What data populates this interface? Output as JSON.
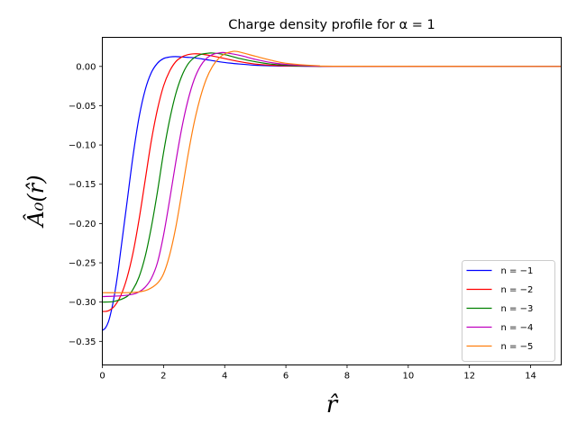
{
  "chart_data": {
    "type": "line",
    "title": "Charge density profile for α = 1",
    "xlabel": "r̂",
    "ylabel": "Â₀(r̂)",
    "xlim": [
      0,
      15
    ],
    "ylim": [
      -0.38,
      0.037
    ],
    "grid": false,
    "legend_position": "lower-right",
    "xticks": [
      0,
      2,
      4,
      6,
      8,
      10,
      12,
      14
    ],
    "yticks": [
      0.0,
      -0.05,
      -0.1,
      -0.15,
      -0.2,
      -0.25,
      -0.3,
      -0.35
    ],
    "ytick_labels": [
      "0.00",
      "−0.05",
      "−0.10",
      "−0.15",
      "−0.20",
      "−0.25",
      "−0.30",
      "−0.35"
    ],
    "series": [
      {
        "name": "n = −1",
        "color": "#0000ff",
        "x": [
          0,
          0.1,
          0.2,
          0.3,
          0.4,
          0.5,
          0.6,
          0.8,
          1.0,
          1.2,
          1.4,
          1.6,
          1.8,
          2.0,
          2.2,
          2.4,
          2.6,
          2.8,
          3.0,
          3.5,
          4.0,
          4.5,
          5.0,
          5.5,
          6.0,
          7.0,
          8.0,
          15.0
        ],
        "y": [
          -0.336,
          -0.333,
          -0.325,
          -0.31,
          -0.29,
          -0.265,
          -0.235,
          -0.175,
          -0.115,
          -0.065,
          -0.03,
          -0.008,
          0.004,
          0.01,
          0.012,
          0.0125,
          0.012,
          0.0115,
          0.011,
          0.008,
          0.005,
          0.003,
          0.0015,
          0.0008,
          0.0004,
          0.0001,
          0.0,
          0.0
        ]
      },
      {
        "name": "n = −2",
        "color": "#ff0000",
        "x": [
          0,
          0.2,
          0.4,
          0.6,
          0.8,
          1.0,
          1.2,
          1.4,
          1.6,
          1.8,
          2.0,
          2.2,
          2.4,
          2.6,
          2.8,
          3.0,
          3.2,
          3.5,
          4.0,
          4.5,
          5.0,
          5.5,
          6.0,
          7.0,
          8.0,
          15.0
        ],
        "y": [
          -0.312,
          -0.311,
          -0.305,
          -0.292,
          -0.27,
          -0.238,
          -0.195,
          -0.145,
          -0.095,
          -0.055,
          -0.025,
          -0.006,
          0.006,
          0.012,
          0.015,
          0.016,
          0.0158,
          0.014,
          0.01,
          0.006,
          0.003,
          0.0015,
          0.0007,
          0.0001,
          0.0,
          0.0
        ]
      },
      {
        "name": "n = −3",
        "color": "#008000",
        "x": [
          0,
          0.4,
          0.8,
          1.0,
          1.2,
          1.4,
          1.6,
          1.8,
          2.0,
          2.2,
          2.4,
          2.6,
          2.8,
          3.0,
          3.2,
          3.4,
          3.6,
          4.0,
          4.5,
          5.0,
          5.5,
          6.0,
          7.0,
          8.0,
          15.0
        ],
        "y": [
          -0.3,
          -0.299,
          -0.293,
          -0.284,
          -0.268,
          -0.242,
          -0.205,
          -0.16,
          -0.11,
          -0.068,
          -0.035,
          -0.012,
          0.003,
          0.011,
          0.015,
          0.0165,
          0.017,
          0.015,
          0.01,
          0.006,
          0.003,
          0.0015,
          0.0003,
          0.0,
          0.0
        ]
      },
      {
        "name": "n = −4",
        "color": "#bf00bf",
        "x": [
          0,
          0.6,
          1.0,
          1.2,
          1.4,
          1.6,
          1.8,
          2.0,
          2.2,
          2.4,
          2.6,
          2.8,
          3.0,
          3.2,
          3.4,
          3.6,
          3.8,
          4.0,
          4.5,
          5.0,
          5.5,
          6.0,
          7.0,
          8.0,
          15.0
        ],
        "y": [
          -0.293,
          -0.292,
          -0.29,
          -0.287,
          -0.281,
          -0.27,
          -0.25,
          -0.215,
          -0.17,
          -0.122,
          -0.078,
          -0.043,
          -0.017,
          0.0,
          0.01,
          0.015,
          0.017,
          0.0175,
          0.014,
          0.009,
          0.005,
          0.0025,
          0.0005,
          0.0,
          0.0
        ]
      },
      {
        "name": "n = −5",
        "color": "#ff7f0e",
        "x": [
          0,
          0.8,
          1.2,
          1.5,
          1.8,
          2.0,
          2.2,
          2.4,
          2.6,
          2.8,
          3.0,
          3.2,
          3.4,
          3.6,
          3.8,
          4.0,
          4.2,
          4.4,
          5.0,
          5.5,
          6.0,
          7.0,
          8.0,
          15.0
        ],
        "y": [
          -0.288,
          -0.288,
          -0.287,
          -0.284,
          -0.276,
          -0.264,
          -0.24,
          -0.205,
          -0.16,
          -0.113,
          -0.072,
          -0.04,
          -0.016,
          0.0,
          0.01,
          0.016,
          0.0185,
          0.019,
          0.013,
          0.008,
          0.004,
          0.001,
          0.0002,
          0.0
        ]
      }
    ]
  }
}
